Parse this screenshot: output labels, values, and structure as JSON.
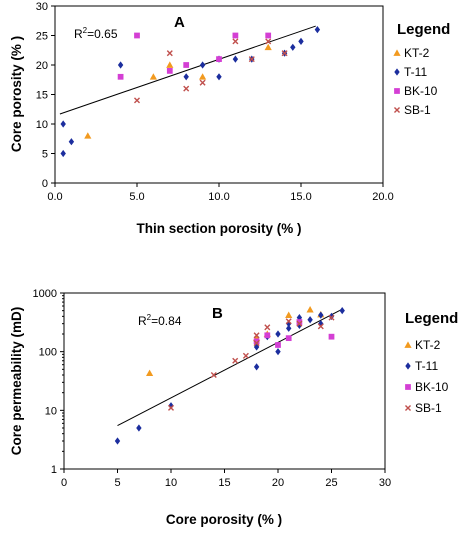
{
  "chart_data": [
    {
      "type": "scatter",
      "panel_label": "A",
      "r2_label": "R",
      "r2_sup": "2",
      "r2_value": "=0.65",
      "xlabel": "Thin section porosity (% )",
      "ylabel": "Core porosity (% )",
      "xlim": [
        0,
        20
      ],
      "ylim": [
        0,
        30
      ],
      "x_ticks": [
        "0.0",
        "5.0",
        "10.0",
        "15.0",
        "20.0"
      ],
      "y_ticks": [
        "0",
        "5",
        "10",
        "15",
        "20",
        "25",
        "30"
      ],
      "x_tick_values": [
        0,
        5,
        10,
        15,
        20
      ],
      "y_tick_values": [
        0,
        5,
        10,
        15,
        20,
        25,
        30
      ],
      "log_y": false,
      "legend_title": "Legend",
      "legend_position": "right",
      "trendline": {
        "x": [
          0.3,
          15.9
        ],
        "y": [
          11.7,
          26.6
        ]
      },
      "series": [
        {
          "name": "KT-2",
          "marker": "triangle",
          "color": "#F29A1F",
          "x": [
            2,
            6,
            7,
            9,
            13
          ],
          "y": [
            8,
            18,
            20,
            18,
            23
          ]
        },
        {
          "name": "T-11",
          "marker": "diamond",
          "color": "#1C2E9E",
          "x": [
            0.5,
            0.5,
            1,
            4,
            8,
            9,
            10,
            10,
            11,
            12,
            14,
            14.5,
            15,
            16
          ],
          "y": [
            5,
            10,
            7,
            20,
            18,
            20,
            18,
            21,
            21,
            21,
            22,
            23,
            24,
            26
          ]
        },
        {
          "name": "BK-10",
          "marker": "square",
          "color": "#D43FD4",
          "x": [
            4,
            5,
            7,
            8,
            10,
            11,
            13
          ],
          "y": [
            18,
            25,
            19,
            20,
            21,
            25,
            25
          ]
        },
        {
          "name": "SB-1",
          "marker": "x",
          "color": "#C0504D",
          "x": [
            5,
            7,
            8,
            9,
            11,
            12,
            13,
            14
          ],
          "y": [
            14,
            22,
            16,
            17,
            24,
            21,
            24,
            22
          ]
        }
      ]
    },
    {
      "type": "scatter",
      "panel_label": "B",
      "r2_label": "R",
      "r2_sup": "2",
      "r2_value": "=0.84",
      "xlabel": "Core porosity (% )",
      "ylabel": "Core permeability (mD)",
      "xlim": [
        0,
        30
      ],
      "ylim": [
        1,
        1000
      ],
      "x_ticks": [
        "0",
        "5",
        "10",
        "15",
        "20",
        "25",
        "30"
      ],
      "y_ticks": [
        "1",
        "10",
        "100",
        "1000"
      ],
      "x_tick_values": [
        0,
        5,
        10,
        15,
        20,
        25,
        30
      ],
      "y_tick_values": [
        1,
        10,
        100,
        1000
      ],
      "log_y": true,
      "legend_title": "Legend",
      "legend_position": "right",
      "trendline": {
        "x": [
          5,
          26
        ],
        "y": [
          5.5,
          530
        ]
      },
      "series": [
        {
          "name": "KT-2",
          "marker": "triangle",
          "color": "#F29A1F",
          "x": [
            8,
            18,
            19,
            21,
            23,
            24
          ],
          "y": [
            43,
            170,
            200,
            420,
            520,
            430
          ]
        },
        {
          "name": "T-11",
          "marker": "diamond",
          "color": "#1C2E9E",
          "x": [
            5,
            7,
            10,
            18,
            18,
            19,
            20,
            20,
            21,
            21,
            22,
            22,
            23,
            24,
            24,
            25,
            26
          ],
          "y": [
            3,
            5,
            12,
            55,
            120,
            180,
            100,
            200,
            300,
            250,
            280,
            380,
            350,
            300,
            420,
            400,
            500
          ]
        },
        {
          "name": "BK-10",
          "marker": "square",
          "color": "#D43FD4",
          "x": [
            18,
            19,
            20,
            21,
            22,
            25
          ],
          "y": [
            150,
            190,
            130,
            170,
            320,
            180
          ]
        },
        {
          "name": "SB-1",
          "marker": "x",
          "color": "#C0504D",
          "x": [
            10,
            14,
            16,
            17,
            18,
            18,
            19,
            21,
            22,
            24,
            25
          ],
          "y": [
            11,
            40,
            70,
            85,
            140,
            190,
            260,
            330,
            300,
            270,
            380
          ]
        }
      ]
    }
  ]
}
